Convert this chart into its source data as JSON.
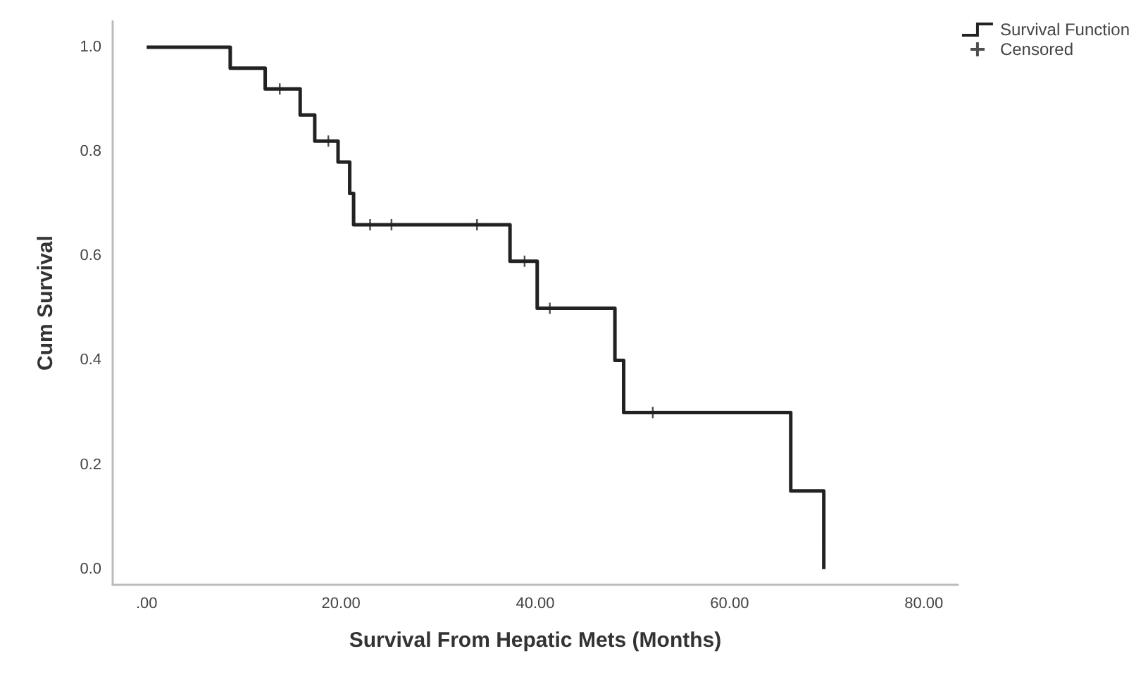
{
  "chart_data": {
    "type": "step",
    "xlabel": "Survival From Hepatic Mets (Months)",
    "ylabel": "Cum Survival",
    "xlim": [
      -3.5,
      83.5
    ],
    "ylim": [
      -0.03,
      1.05
    ],
    "xticks": [
      {
        "value": 0,
        "label": ".00"
      },
      {
        "value": 20,
        "label": "20.00"
      },
      {
        "value": 40,
        "label": "40.00"
      },
      {
        "value": 60,
        "label": "60.00"
      },
      {
        "value": 80,
        "label": "80.00"
      }
    ],
    "yticks": [
      {
        "value": 0,
        "label": "0.0"
      },
      0.2,
      0.4,
      0.6,
      0.8,
      {
        "value": 1,
        "label": "1.0"
      }
    ],
    "grid": false,
    "legend": "top right",
    "series": [
      {
        "name": "Survival Function",
        "type": "step",
        "color": "#222222",
        "line_style": "solid",
        "marker": "none",
        "x": [
          0,
          8.6,
          12.2,
          15.8,
          17.3,
          19.7,
          20.9,
          21.3,
          37.4,
          40.2,
          48.2,
          49.1,
          66.3,
          69.7
        ],
        "values": [
          1,
          0.96,
          0.92,
          0.87,
          0.82,
          0.78,
          0.72,
          0.66,
          0.59,
          0.5,
          0.4,
          0.3,
          0.15,
          0
        ]
      },
      {
        "name": "Censored",
        "type": "scatter",
        "color": "#222222",
        "marker": "cross",
        "x": [
          13.7,
          18.7,
          23.0,
          25.2,
          34.0,
          38.9,
          41.5,
          52.1
        ],
        "values": [
          0.92,
          0.82,
          0.66,
          0.66,
          0.66,
          0.59,
          0.5,
          0.3
        ]
      }
    ]
  }
}
